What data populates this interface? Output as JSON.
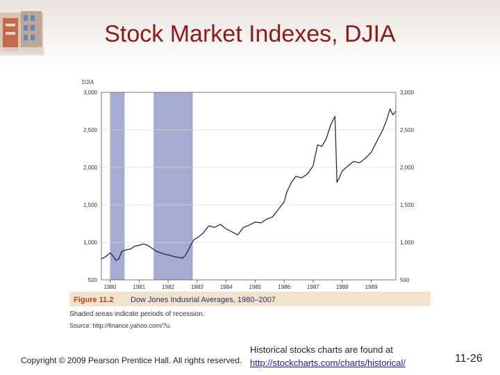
{
  "slide": {
    "title": "Stock Market Indexes, DJIA",
    "copyright": "Copyright © 2009 Pearson Prentice Hall. All rights reserved.",
    "note_text": "Historical stocks charts are found at",
    "note_link": "http://stockcharts.com/charts/historical/",
    "slide_number": "11-26"
  },
  "colors": {
    "title": "#8b1a1a",
    "recession": "#a3abcf",
    "line": "#1f2a44",
    "caption_band": "#f2e3cf",
    "figure_label": "#b8421a",
    "caption_title": "#23325e"
  },
  "chart_data": {
    "type": "line",
    "ylabel": "DJIA",
    "ylim": [
      500,
      3000
    ],
    "yticks": [
      3000,
      2500,
      2000,
      1500,
      1000,
      500
    ],
    "ytick_labels": [
      "3,000",
      "2,500",
      "2,000",
      "1,500",
      "1,000",
      "500"
    ],
    "xlim": [
      1979.7,
      1989.85
    ],
    "xticks": [
      1980,
      1981,
      1982,
      1983,
      1984,
      1985,
      1986,
      1987,
      1988,
      1989
    ],
    "recessions": [
      [
        1980.0,
        1980.5
      ],
      [
        1981.5,
        1982.85
      ]
    ],
    "series": [
      {
        "name": "Dow Jones Industrial Average",
        "x": [
          1979.7,
          1979.85,
          1980.0,
          1980.1,
          1980.2,
          1980.3,
          1980.4,
          1980.55,
          1980.7,
          1980.85,
          1981.0,
          1981.15,
          1981.3,
          1981.45,
          1981.6,
          1981.75,
          1981.9,
          1982.05,
          1982.2,
          1982.35,
          1982.5,
          1982.6,
          1982.7,
          1982.8,
          1982.9,
          1983.0,
          1983.2,
          1983.4,
          1983.6,
          1983.8,
          1984.0,
          1984.2,
          1984.4,
          1984.6,
          1984.8,
          1985.0,
          1985.2,
          1985.4,
          1985.6,
          1985.8,
          1986.0,
          1986.1,
          1986.25,
          1986.4,
          1986.6,
          1986.8,
          1987.0,
          1987.15,
          1987.3,
          1987.45,
          1987.6,
          1987.75,
          1987.78,
          1987.82,
          1987.9,
          1988.0,
          1988.2,
          1988.4,
          1988.6,
          1988.8,
          1989.0,
          1989.2,
          1989.4,
          1989.55,
          1989.65,
          1989.75,
          1989.85
        ],
        "y": [
          780,
          810,
          860,
          820,
          760,
          780,
          880,
          900,
          910,
          950,
          960,
          980,
          960,
          920,
          880,
          860,
          840,
          830,
          810,
          800,
          790,
          830,
          900,
          980,
          1040,
          1060,
          1120,
          1220,
          1200,
          1240,
          1180,
          1140,
          1100,
          1200,
          1230,
          1270,
          1260,
          1310,
          1340,
          1440,
          1540,
          1680,
          1800,
          1880,
          1860,
          1910,
          2020,
          2300,
          2280,
          2380,
          2560,
          2680,
          2350,
          1800,
          1860,
          1950,
          2020,
          2080,
          2060,
          2120,
          2200,
          2350,
          2500,
          2650,
          2780,
          2700,
          2750
        ]
      }
    ],
    "caption": {
      "figure_label": "Figure 11.2",
      "figure_title": "Dow Jones Indusrial Averages, 1980–2007",
      "shaded_note": "Shaded areas indicate periods of recession.",
      "source": "Source: http://finance.yahoo.com/?u."
    }
  }
}
